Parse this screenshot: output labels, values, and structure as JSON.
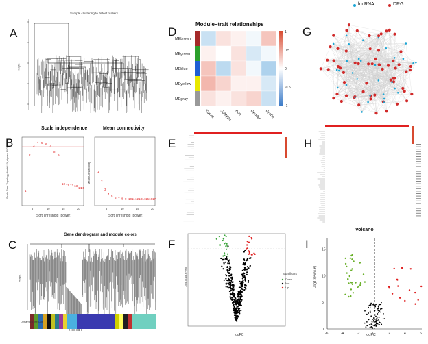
{
  "panels": {
    "A": {
      "label": "A",
      "title": "Sample clustering to detect outliers",
      "ylabel": "Height"
    },
    "B": {
      "label": "B",
      "title_left": "Scale independence",
      "title_right": "Mean connectivity",
      "xlabel_left": "Soft Threshold (power)",
      "xlabel_right": "Soft Threshold (power)",
      "ylabel_left": "Scale Free Topology Model Fit,signed R^2",
      "ylabel_right": "Mean Connectivity"
    },
    "C": {
      "label": "C",
      "title": "Gene dendrogram and module colors",
      "ylabel": "Height",
      "rowlabel": "Dynamic Tree Cut"
    },
    "D": {
      "label": "D",
      "title": "Module–trait relationships",
      "modules": [
        "MEbrown",
        "MEgreen",
        "MEblue",
        "MEyellow",
        "MEgray"
      ],
      "module_colors": [
        "#a52a2a",
        "#2ca02c",
        "#1f5fd4",
        "#e8e800",
        "#999999"
      ],
      "traits": [
        "Tumor",
        "Subtype",
        "Age",
        "Gender",
        "Grade"
      ],
      "legend_ticks": [
        "1",
        "0.5",
        "0",
        "-0.5",
        "-1"
      ]
    },
    "E": {
      "label": "E"
    },
    "F": {
      "label": "F",
      "xlabel": "logFC",
      "ylabel": "-log10(adj.P.Val)",
      "legend_title": "Significant",
      "legend_items": [
        "Down",
        "Not",
        "Up"
      ],
      "legend_colors": [
        "#3aa53a",
        "#000000",
        "#e02020"
      ]
    },
    "G": {
      "label": "G",
      "legend_items": [
        "lncRNA",
        "DRG"
      ],
      "legend_colors": [
        "#1aa6d6",
        "#d12a2a"
      ]
    },
    "H": {
      "label": "H"
    },
    "I": {
      "label": "I",
      "title": "Volcano",
      "xlabel": "logFC",
      "ylabel": "-log10(Pvalue)",
      "xticks": [
        "-6",
        "-4",
        "-2",
        "0",
        "2",
        "4",
        "6"
      ],
      "yticks": [
        "0",
        "5",
        "10",
        "15"
      ]
    }
  }
}
